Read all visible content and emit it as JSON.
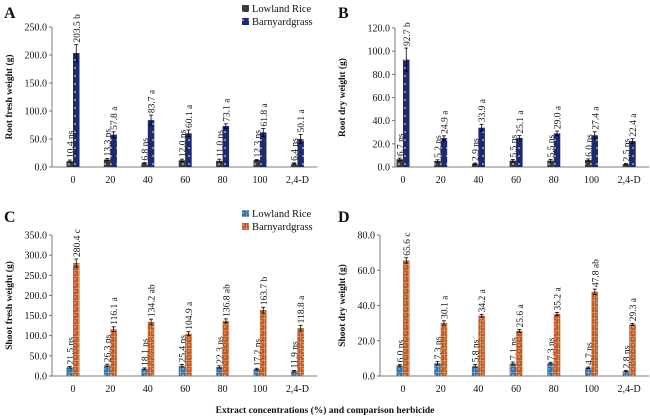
{
  "x_axis_title": "Extract concentrations (%) and comparison herbicide",
  "chart_data": [
    {
      "panel": "A",
      "type": "bar",
      "ylabel": "Root fresh weight (g)",
      "ylim": [
        0,
        250
      ],
      "yticks": [
        "0.0",
        "50.0",
        "100.0",
        "150.0",
        "200.0",
        "250.0"
      ],
      "ystep": 50,
      "categories": [
        "0",
        "20",
        "40",
        "60",
        "80",
        "100",
        "2,4-D"
      ],
      "legend": "top-right",
      "grid": false,
      "series": [
        {
          "name": "Lowland Rice",
          "color": "#3b3b3b",
          "values": [
            10.4,
            13.3,
            6.8,
            12.0,
            11.0,
            12.3,
            6.4
          ],
          "errors": [
            2,
            2,
            1,
            2,
            3,
            1,
            1
          ],
          "labels": [
            "10.4 ns",
            "13.3 ns",
            "6.8 ns",
            "12.0 ns",
            "11.0 ns",
            "12.3 ns",
            "6.4 ns"
          ]
        },
        {
          "name": "Barnyardgrass",
          "color": "#1f2a6e",
          "values": [
            203.5,
            57.8,
            83.7,
            60.1,
            73.1,
            61.8,
            50.1
          ],
          "errors": [
            15,
            5,
            9,
            6,
            4,
            7,
            8
          ],
          "labels": [
            "203.5 b",
            "57.8 a",
            "83.7 a",
            "60.1 a",
            "73.1 a",
            "61.8 a",
            "50.1 a"
          ]
        }
      ]
    },
    {
      "panel": "B",
      "type": "bar",
      "ylabel": "Root dry weight (g)",
      "ylim": [
        0,
        120
      ],
      "yticks": [
        "0.0",
        "20.0",
        "40.0",
        "60.0",
        "80.0",
        "100.0",
        "120.0"
      ],
      "ystep": 20,
      "categories": [
        "0",
        "20",
        "40",
        "60",
        "80",
        "100",
        "2,4-D"
      ],
      "grid": false,
      "series": [
        {
          "color": "#3b3b3b",
          "values": [
            6.7,
            5.2,
            2.9,
            5.5,
            5.5,
            6.0,
            2.5
          ],
          "errors": [
            1,
            1,
            0.5,
            1,
            1,
            1,
            0.5
          ],
          "labels": [
            "6.7 ns",
            "5.2 ns",
            "2.9 ns",
            "5.5 ns",
            "5.5 ns",
            "6.0 ns",
            "2.5 ns"
          ]
        },
        {
          "color": "#1f2a6e",
          "values": [
            92.7,
            24.9,
            33.9,
            25.1,
            29.0,
            27.4,
            22.4
          ],
          "errors": [
            10,
            2,
            3,
            2,
            2,
            3,
            2
          ],
          "labels": [
            "92.7 b",
            "24.9 a",
            "33.9 a",
            "25.1 a",
            "29.0 a",
            "27.4 a",
            "22.4 a"
          ]
        }
      ]
    },
    {
      "panel": "C",
      "type": "bar",
      "ylabel": "Shoot fresh weight (g)",
      "ylim": [
        0,
        350
      ],
      "yticks": [
        "0.0",
        "50.0",
        "100.0",
        "150.0",
        "200.0",
        "250.0",
        "300.0",
        "350.0"
      ],
      "ystep": 50,
      "categories": [
        "0",
        "20",
        "40",
        "60",
        "80",
        "100",
        "2,4-D"
      ],
      "legend": "top-right",
      "grid": false,
      "series": [
        {
          "name": "Lowland Rice",
          "color": "#2e75b6",
          "values": [
            21.5,
            26.3,
            18.1,
            25.4,
            22.3,
            17.2,
            11.9
          ],
          "errors": [
            2,
            3,
            2,
            3,
            3,
            2,
            2
          ],
          "labels": [
            "21.5 ns",
            "26.3 ns",
            "18.1 ns",
            "25.4 ns",
            "22.3 ns",
            "17.2 ns",
            "11.9 ns"
          ]
        },
        {
          "name": "Barnyardgrass",
          "color": "#c55a1f",
          "values": [
            280.4,
            116.1,
            134.2,
            104.9,
            136.8,
            163.7,
            118.8
          ],
          "errors": [
            10,
            6,
            7,
            5,
            5,
            7,
            7
          ],
          "labels": [
            "280.4 c",
            "116.1 a",
            "134.2 ab",
            "104.9 a",
            "136.8 ab",
            "163.7 b",
            "118.8 a"
          ]
        }
      ]
    },
    {
      "panel": "D",
      "type": "bar",
      "ylabel": "Shoot dry weight (g)",
      "ylim": [
        0,
        80
      ],
      "yticks": [
        "0.0",
        "20.0",
        "40.0",
        "60.0",
        "80.0"
      ],
      "ystep": 20,
      "categories": [
        "0",
        "20",
        "40",
        "60",
        "80",
        "100",
        "2,4-D"
      ],
      "grid": false,
      "series": [
        {
          "color": "#2e75b6",
          "values": [
            6.0,
            7.3,
            5.8,
            7.1,
            7.3,
            4.7,
            2.8
          ],
          "errors": [
            0.5,
            1,
            0.8,
            0.8,
            0.5,
            0.4,
            0.4
          ],
          "labels": [
            "6.0 ns",
            "7.3 ns",
            "5.8 ns",
            "7.1 ns",
            "7.3 ns",
            "4.7 ns",
            "2.8 ns"
          ]
        },
        {
          "color": "#c55a1f",
          "values": [
            65.6,
            30.1,
            34.2,
            25.6,
            35.2,
            47.8,
            29.3
          ],
          "errors": [
            1.5,
            1.2,
            0.8,
            0.8,
            0.8,
            1.5,
            0.6
          ],
          "labels": [
            "65.6 c",
            "30.1 a",
            "34.2 a",
            "25.6 a",
            "35.2 a",
            "47.8 ab",
            "29.3 a"
          ]
        }
      ]
    }
  ]
}
